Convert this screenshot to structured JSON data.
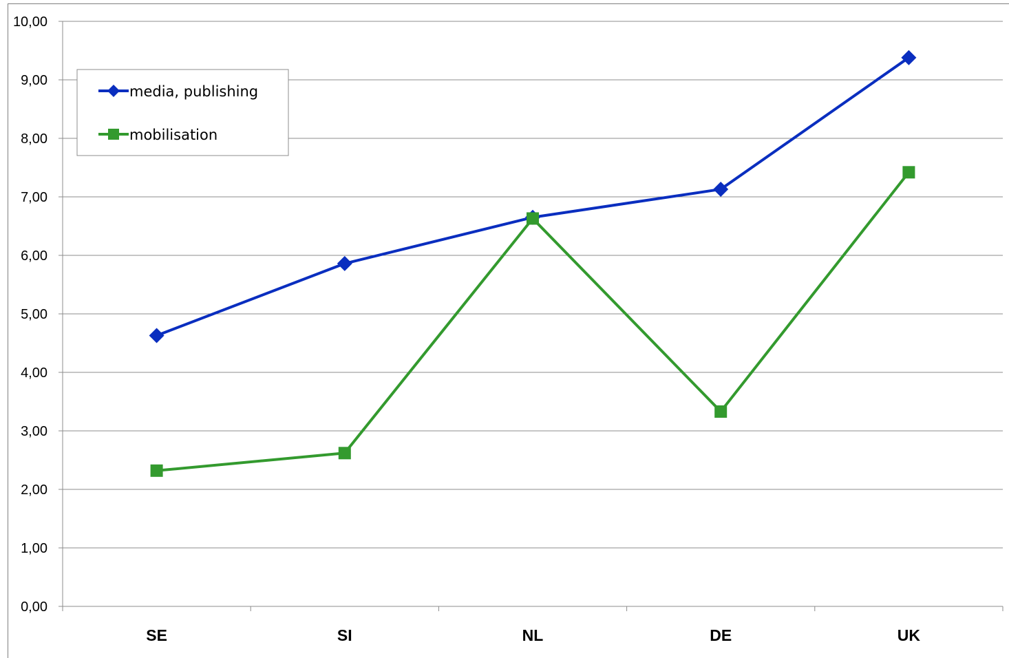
{
  "chart_data": {
    "type": "line",
    "categories": [
      "SE",
      "SI",
      "NL",
      "DE",
      "UK"
    ],
    "series": [
      {
        "name": "media, publishing",
        "values": [
          4.63,
          5.86,
          6.65,
          7.13,
          9.38
        ],
        "color": "#0a2ebf",
        "marker": "diamond"
      },
      {
        "name": "mobilisation",
        "values": [
          2.32,
          2.62,
          6.63,
          3.33,
          7.42
        ],
        "color": "#339a2e",
        "marker": "square"
      }
    ],
    "y_ticks": [
      "0,00",
      "1,00",
      "2,00",
      "3,00",
      "4,00",
      "5,00",
      "6,00",
      "7,00",
      "8,00",
      "9,00",
      "10,00"
    ],
    "ylim": [
      0,
      10
    ],
    "grid": true,
    "legend_position": "top-left",
    "title": "",
    "xlabel": "",
    "ylabel": ""
  }
}
